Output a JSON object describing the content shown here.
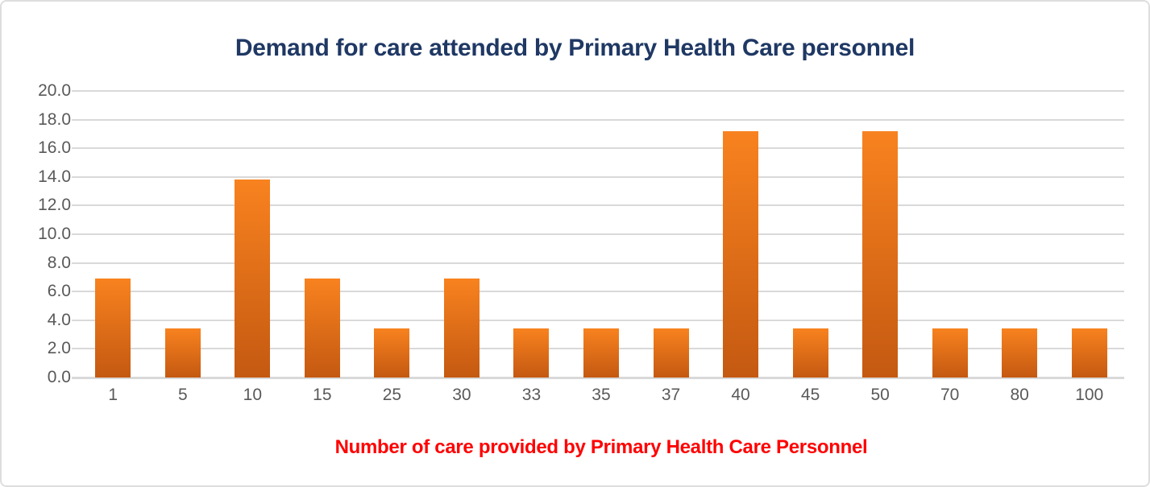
{
  "chart_data": {
    "type": "bar",
    "title": "Demand for care attended by Primary Health Care personnel",
    "xlabel": "Number of care provided by Primary Health Care Personnel",
    "ylabel": "",
    "categories": [
      "1",
      "5",
      "10",
      "15",
      "25",
      "30",
      "33",
      "35",
      "37",
      "40",
      "45",
      "50",
      "70",
      "80",
      "100"
    ],
    "values": [
      6.9,
      3.4,
      13.8,
      6.9,
      3.4,
      6.9,
      3.4,
      3.4,
      3.4,
      17.2,
      3.4,
      17.2,
      3.4,
      3.4,
      3.4
    ],
    "ylim": [
      0,
      20
    ],
    "yticks": [
      20.0,
      18.0,
      16.0,
      14.0,
      12.0,
      10.0,
      8.0,
      6.0,
      4.0,
      2.0,
      0.0
    ],
    "ytick_label_format": "one-decimal",
    "grid": true,
    "legend": false
  },
  "colors": {
    "title": "#1F3864",
    "xlabel": "#FF0000",
    "tick_labels": "#595959",
    "gridline": "#D9D9D9",
    "bar_gradient_top": "#F8821F",
    "bar_gradient_bottom": "#C45911",
    "frame_border": "#DEDEDE",
    "background": "#FFFFFF"
  }
}
